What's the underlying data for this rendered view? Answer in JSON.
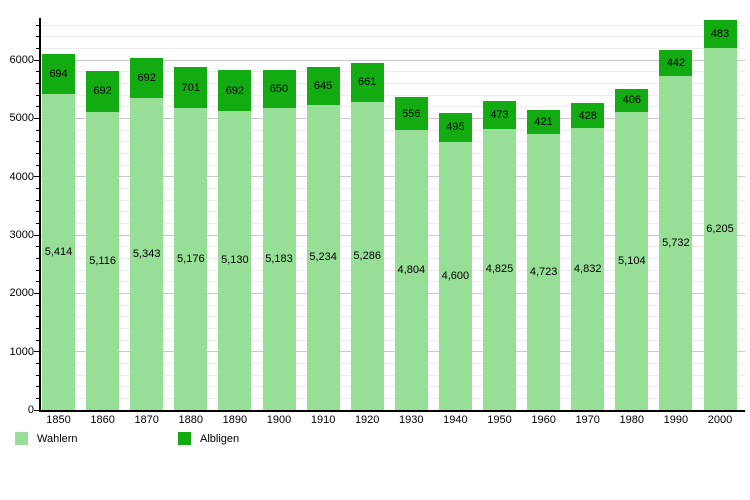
{
  "chart_data": {
    "type": "bar",
    "stacked": true,
    "title": "",
    "xlabel": "",
    "ylabel": "",
    "categories": [
      "1850",
      "1860",
      "1870",
      "1880",
      "1890",
      "1900",
      "1910",
      "1920",
      "1930",
      "1940",
      "1950",
      "1960",
      "1970",
      "1980",
      "1990",
      "2000"
    ],
    "series": [
      {
        "name": "Wahlern",
        "color": "#97DE97",
        "values": [
          5414,
          5116,
          5343,
          5176,
          5130,
          5183,
          5234,
          5286,
          4804,
          4600,
          4825,
          4723,
          4832,
          5104,
          5732,
          6205
        ],
        "labels": [
          "5,414",
          "5,116",
          "5,343",
          "5,176",
          "5,130",
          "5,183",
          "5,234",
          "5,286",
          "4,804",
          "4,600",
          "4,825",
          "4,723",
          "4,832",
          "5,104",
          "5,732",
          "6,205"
        ]
      },
      {
        "name": "Albligen",
        "color": "#12AB12",
        "values": [
          694,
          692,
          692,
          701,
          692,
          650,
          645,
          661,
          556,
          495,
          473,
          421,
          428,
          406,
          442,
          483
        ],
        "labels": [
          "694",
          "692",
          "692",
          "701",
          "692",
          "650",
          "645",
          "661",
          "556",
          "495",
          "473",
          "421",
          "428",
          "406",
          "442",
          "483"
        ]
      }
    ],
    "ylim": [
      0,
      6720
    ],
    "yticks": [
      0,
      1000,
      2000,
      3000,
      4000,
      5000,
      6000
    ],
    "ytick_labels": [
      "0",
      "1000",
      "2000",
      "3000",
      "4000",
      "5000",
      "6000"
    ],
    "minor_grid_step": 200,
    "minor_grid_max": 6600,
    "grid": true,
    "legend_position": "bottom-left"
  }
}
